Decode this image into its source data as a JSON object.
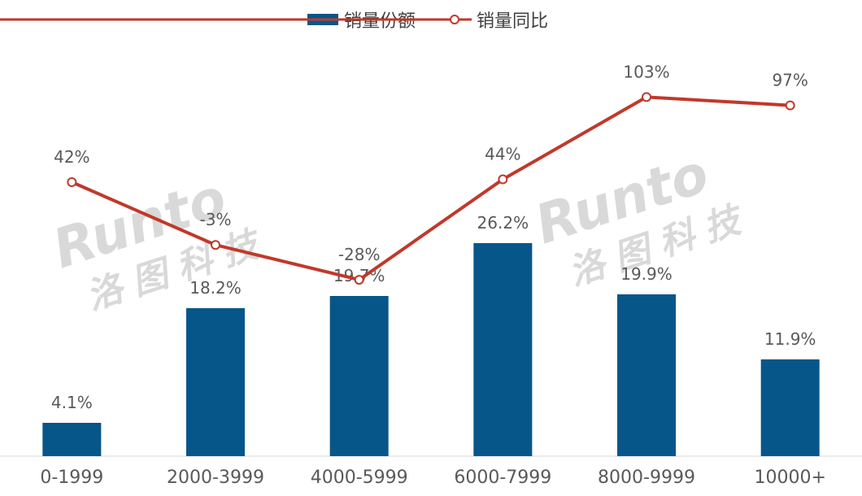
{
  "chart_data": {
    "type": "bar",
    "categories": [
      "0-1999",
      "2000-3999",
      "4000-5999",
      "6000-7999",
      "8000-9999",
      "10000+"
    ],
    "series": [
      {
        "name": "销量份额",
        "type": "bar",
        "values": [
          4.1,
          18.2,
          19.7,
          26.2,
          19.9,
          11.9
        ],
        "labels": [
          "4.1%",
          "18.2%",
          "19.7%",
          "26.2%",
          "19.9%",
          "11.9%"
        ],
        "color": "#06568A"
      },
      {
        "name": "销量同比",
        "type": "line",
        "values": [
          42,
          -3,
          -28,
          44,
          103,
          97
        ],
        "labels": [
          "42%",
          "-3%",
          "-28%",
          "44%",
          "103%",
          "97%"
        ],
        "color": "#C0392B"
      }
    ],
    "legend_position": "top-center",
    "grid": false
  },
  "watermark": {
    "brand": "Runto",
    "cn": "洛图科技"
  }
}
